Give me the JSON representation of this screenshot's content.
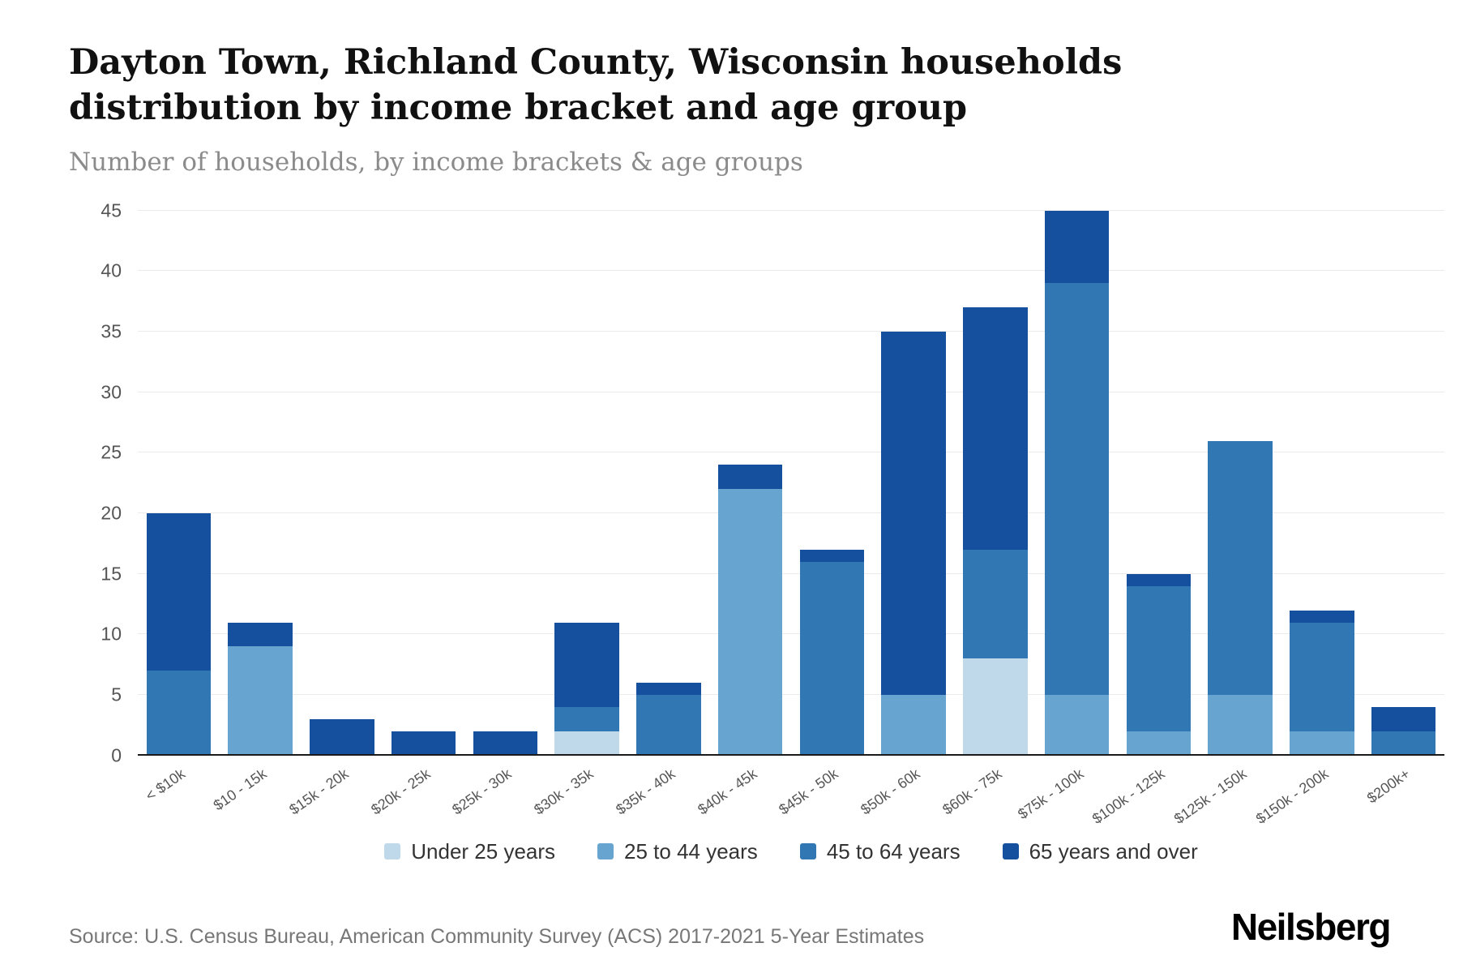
{
  "header": {
    "title": "Dayton Town, Richland County, Wisconsin households distribution by income bracket and age group",
    "subtitle": "Number of households, by income brackets & age groups"
  },
  "footer": {
    "source": "Source: U.S. Census Bureau, American Community Survey (ACS) 2017-2021 5-Year Estimates",
    "brand": "Neilsberg"
  },
  "colors": {
    "under_25": "#bfd8ea",
    "age_25_44": "#67a4d0",
    "age_45_64": "#3077b4",
    "age_65_over": "#15509f",
    "gridline": "#ebebeb",
    "axis_line": "#1a1a1a"
  },
  "chart_data": {
    "type": "bar",
    "stacked": true,
    "title": "Dayton Town, Richland County, Wisconsin households distribution by income bracket and age group",
    "subtitle": "Number of households, by income brackets & age groups",
    "xlabel": "",
    "ylabel": "",
    "ylim": [
      0,
      45
    ],
    "yticks": [
      0,
      5,
      10,
      15,
      20,
      25,
      30,
      35,
      40,
      45
    ],
    "grid": true,
    "legend_position": "bottom",
    "categories": [
      "< $10k",
      "$10 - 15k",
      "$15k - 20k",
      "$20k - 25k",
      "$25k - 30k",
      "$30k - 35k",
      "$35k - 40k",
      "$40k - 45k",
      "$45k - 50k",
      "$50k - 60k",
      "$60k - 75k",
      "$75k - 100k",
      "$100k - 125k",
      "$125k - 150k",
      "$150k - 200k",
      "$200k+"
    ],
    "series": [
      {
        "name": "Under 25 years",
        "color": "#bfd8ea",
        "values": [
          0,
          0,
          0,
          0,
          0,
          2,
          0,
          0,
          0,
          0,
          8,
          0,
          0,
          0,
          0,
          0
        ]
      },
      {
        "name": "25 to 44 years",
        "color": "#67a4d0",
        "values": [
          0,
          9,
          0,
          0,
          0,
          0,
          0,
          22,
          0,
          5,
          0,
          5,
          2,
          5,
          2,
          0
        ]
      },
      {
        "name": "45 to 64 years",
        "color": "#3077b4",
        "values": [
          7,
          0,
          0,
          0,
          0,
          2,
          5,
          0,
          16,
          0,
          9,
          34,
          12,
          21,
          9,
          2
        ]
      },
      {
        "name": "65 years and over",
        "color": "#15509f",
        "values": [
          13,
          2,
          3,
          2,
          2,
          7,
          1,
          2,
          1,
          30,
          20,
          6,
          1,
          0,
          1,
          2
        ]
      }
    ],
    "totals": [
      20,
      11,
      3,
      2,
      2,
      11,
      6,
      24,
      17,
      35,
      37,
      45,
      15,
      26,
      12,
      4
    ]
  }
}
